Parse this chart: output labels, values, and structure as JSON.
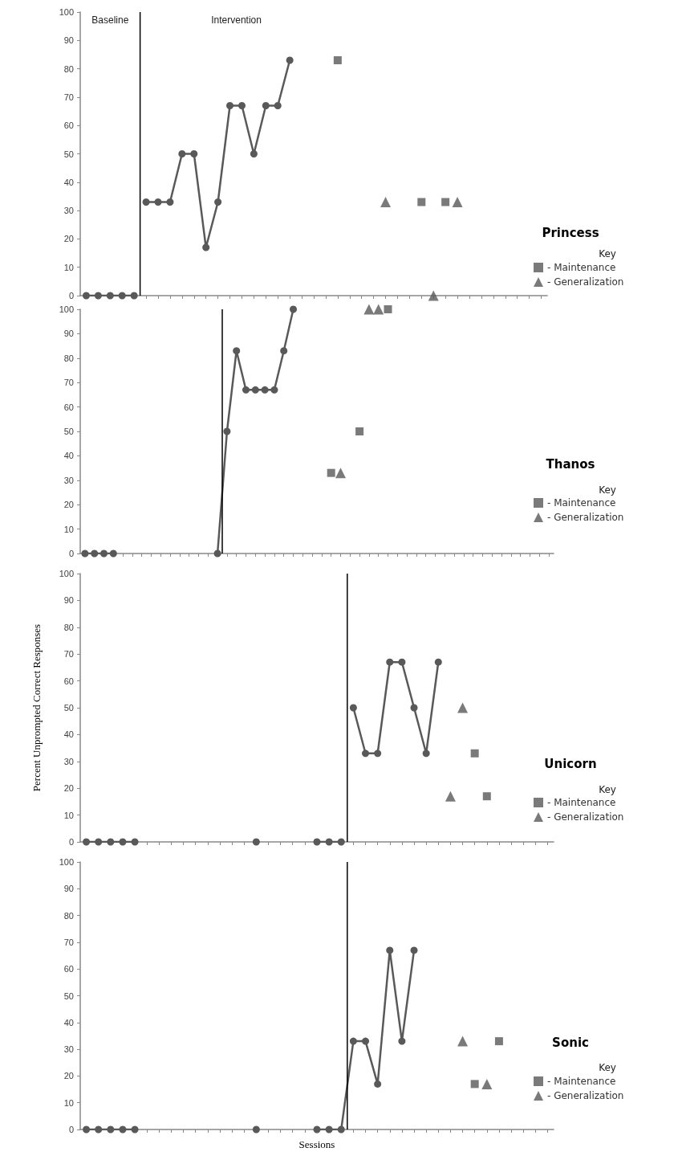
{
  "chart_data": [
    {
      "type": "line",
      "title": "Princess",
      "legend_title": "Key",
      "legend": "right",
      "tick_labels": "y",
      "grid": false,
      "marker": "circle",
      "line_style": "solid",
      "annotations": [
        "Baseline",
        "Intervention"
      ],
      "categories": [
        null,
        null,
        null,
        null,
        null,
        null,
        null,
        null,
        null,
        null,
        null,
        null,
        null,
        null,
        null,
        null,
        null,
        null,
        null,
        null,
        null,
        null,
        null,
        null,
        null,
        null,
        null,
        null,
        null,
        null,
        null,
        null,
        null,
        null,
        null,
        null,
        null,
        null,
        null
      ],
      "ylim": [
        0,
        100
      ],
      "yticks": [
        0,
        10,
        20,
        30,
        40,
        50,
        60,
        70,
        80,
        90,
        100
      ],
      "series": [
        {
          "color": "#595959",
          "values": [
            0,
            0,
            0,
            0,
            0,
            null,
            null,
            null,
            null,
            null,
            null,
            null,
            null,
            null,
            null,
            null,
            null,
            null,
            null,
            null,
            null,
            null,
            null,
            null,
            null,
            null,
            null,
            null,
            null,
            null,
            null,
            null,
            null,
            null,
            null,
            null,
            null,
            null,
            null
          ]
        },
        {
          "color": "#595959",
          "values": [
            null,
            null,
            null,
            null,
            null,
            33,
            33,
            33,
            50,
            50,
            17,
            33,
            67,
            67,
            50,
            67,
            67,
            83,
            null,
            null,
            null,
            null,
            null,
            null,
            null,
            null,
            null,
            null,
            null,
            null,
            null,
            null,
            null,
            null,
            null,
            null,
            null,
            null,
            null
          ]
        },
        {
          "type": "scatter",
          "name": "- Maintenance",
          "marker": "square",
          "color": "#595959",
          "values": [
            null,
            null,
            null,
            null,
            null,
            null,
            null,
            null,
            null,
            null,
            null,
            null,
            null,
            null,
            null,
            null,
            null,
            null,
            null,
            null,
            null,
            83,
            null,
            null,
            null,
            null,
            null,
            null,
            33,
            null,
            33,
            null,
            null,
            null,
            null,
            null,
            null,
            null,
            null
          ]
        },
        {
          "type": "scatter",
          "name": "- Generalization",
          "marker": "triangle",
          "color": "#595959",
          "values": [
            null,
            null,
            null,
            null,
            null,
            null,
            null,
            null,
            null,
            null,
            null,
            null,
            null,
            null,
            null,
            null,
            null,
            null,
            null,
            null,
            null,
            null,
            null,
            null,
            null,
            33,
            null,
            null,
            null,
            0,
            null,
            33,
            null,
            null,
            null,
            null,
            null,
            null,
            null
          ]
        }
      ]
    },
    {
      "type": "line",
      "title": "Thanos",
      "legend_title": "Key",
      "legend": "right",
      "tick_labels": "y",
      "grid": false,
      "marker": "circle",
      "line_style": "solid",
      "categories": [
        null,
        null,
        null,
        null,
        null,
        null,
        null,
        null,
        null,
        null,
        null,
        null,
        null,
        null,
        null,
        null,
        null,
        null,
        null,
        null,
        null,
        null,
        null,
        null,
        null,
        null,
        null,
        null,
        null,
        null,
        null,
        null,
        null,
        null,
        null,
        null,
        null,
        null,
        null,
        null,
        null,
        null,
        null,
        null,
        null,
        null,
        null,
        null,
        null,
        null
      ],
      "ylim": [
        0,
        100
      ],
      "yticks": [
        0,
        10,
        20,
        30,
        40,
        50,
        60,
        70,
        80,
        90,
        100
      ],
      "series": [
        {
          "color": "#595959",
          "values": [
            0,
            0,
            0,
            0,
            null,
            null,
            null,
            null,
            null,
            null,
            null,
            null,
            null,
            null,
            0,
            50,
            83,
            67,
            67,
            67,
            67,
            83,
            100,
            null,
            null,
            null,
            null,
            null,
            null,
            null,
            null,
            null,
            null,
            null,
            null,
            null,
            null,
            null,
            null,
            null,
            null,
            null,
            null,
            null,
            null,
            null,
            null,
            null,
            null,
            null
          ]
        },
        {
          "type": "scatter",
          "name": "- Maintenance",
          "marker": "square",
          "color": "#595959",
          "values": [
            null,
            null,
            null,
            null,
            null,
            null,
            null,
            null,
            null,
            null,
            null,
            null,
            null,
            null,
            null,
            null,
            null,
            null,
            null,
            null,
            null,
            null,
            null,
            null,
            null,
            null,
            33,
            null,
            null,
            50,
            null,
            null,
            100,
            null,
            null,
            null,
            null,
            null,
            null,
            null,
            null,
            null,
            null,
            null,
            null,
            null,
            null,
            null,
            null,
            null
          ]
        },
        {
          "type": "scatter",
          "name": "- Generalization",
          "marker": "triangle",
          "color": "#595959",
          "values": [
            null,
            null,
            null,
            null,
            null,
            null,
            null,
            null,
            null,
            null,
            null,
            null,
            null,
            null,
            null,
            null,
            null,
            null,
            null,
            null,
            null,
            null,
            null,
            null,
            null,
            null,
            null,
            33,
            null,
            null,
            100,
            100,
            null,
            null,
            null,
            null,
            null,
            null,
            null,
            null,
            null,
            null,
            null,
            null,
            null,
            null,
            null,
            null,
            null,
            null
          ]
        }
      ]
    },
    {
      "type": "line",
      "title": "Unicorn",
      "legend_title": "Key",
      "legend": "right",
      "tick_labels": "y",
      "grid": false,
      "marker": "circle",
      "line_style": "solid",
      "ylabel": "Percent Unprompted Correct Responses",
      "categories": [
        null,
        null,
        null,
        null,
        null,
        null,
        null,
        null,
        null,
        null,
        null,
        null,
        null,
        null,
        null,
        null,
        null,
        null,
        null,
        null,
        null,
        null,
        null,
        null,
        null,
        null,
        null,
        null,
        null,
        null,
        null,
        null,
        null,
        null,
        null,
        null,
        null,
        null,
        null
      ],
      "ylim": [
        0,
        100
      ],
      "yticks": [
        0,
        10,
        20,
        30,
        40,
        50,
        60,
        70,
        80,
        90,
        100
      ],
      "series": [
        {
          "color": "#595959",
          "values": [
            0,
            0,
            0,
            0,
            0,
            null,
            null,
            null,
            null,
            null,
            null,
            null,
            null,
            null,
            0,
            null,
            null,
            null,
            null,
            0,
            0,
            0,
            null,
            null,
            null,
            null,
            null,
            null,
            null,
            null,
            null,
            null,
            null,
            null,
            null,
            null,
            null,
            null,
            null
          ]
        },
        {
          "color": "#595959",
          "values": [
            null,
            null,
            null,
            null,
            null,
            null,
            null,
            null,
            null,
            null,
            null,
            null,
            null,
            null,
            null,
            null,
            null,
            null,
            null,
            null,
            null,
            null,
            50,
            33,
            33,
            67,
            67,
            50,
            33,
            67,
            null,
            null,
            null,
            null,
            null,
            null,
            null,
            null,
            null
          ]
        },
        {
          "type": "scatter",
          "name": "- Maintenance",
          "marker": "square",
          "color": "#595959",
          "values": [
            null,
            null,
            null,
            null,
            null,
            null,
            null,
            null,
            null,
            null,
            null,
            null,
            null,
            null,
            null,
            null,
            null,
            null,
            null,
            null,
            null,
            null,
            null,
            null,
            null,
            null,
            null,
            null,
            null,
            null,
            null,
            null,
            33,
            17,
            null,
            null,
            null,
            null,
            null
          ]
        },
        {
          "type": "scatter",
          "name": "- Generalization",
          "marker": "triangle",
          "color": "#595959",
          "values": [
            null,
            null,
            null,
            null,
            null,
            null,
            null,
            null,
            null,
            null,
            null,
            null,
            null,
            null,
            null,
            null,
            null,
            null,
            null,
            null,
            null,
            null,
            null,
            null,
            null,
            null,
            null,
            null,
            null,
            null,
            17,
            50,
            null,
            null,
            null,
            null,
            null,
            null,
            null
          ]
        }
      ]
    },
    {
      "type": "line",
      "title": "Sonic",
      "legend_title": "Key",
      "legend": "right",
      "tick_labels": "y",
      "grid": false,
      "marker": "circle",
      "line_style": "solid",
      "xlabel": "Sessions",
      "categories": [
        null,
        null,
        null,
        null,
        null,
        null,
        null,
        null,
        null,
        null,
        null,
        null,
        null,
        null,
        null,
        null,
        null,
        null,
        null,
        null,
        null,
        null,
        null,
        null,
        null,
        null,
        null,
        null,
        null,
        null,
        null,
        null,
        null,
        null,
        null,
        null,
        null,
        null,
        null
      ],
      "ylim": [
        0,
        100
      ],
      "yticks": [
        0,
        10,
        20,
        30,
        40,
        50,
        60,
        70,
        80,
        90,
        100
      ],
      "series": [
        {
          "color": "#595959",
          "values": [
            0,
            0,
            0,
            0,
            0,
            null,
            null,
            null,
            null,
            null,
            null,
            null,
            null,
            null,
            0,
            null,
            null,
            null,
            null,
            0,
            0,
            0,
            33,
            33,
            17,
            67,
            33,
            67,
            null,
            null,
            null,
            null,
            null,
            null,
            null,
            null,
            null,
            null,
            null
          ]
        },
        {
          "type": "scatter",
          "name": "- Maintenance",
          "marker": "square",
          "color": "#595959",
          "values": [
            null,
            null,
            null,
            null,
            null,
            null,
            null,
            null,
            null,
            null,
            null,
            null,
            null,
            null,
            null,
            null,
            null,
            null,
            null,
            null,
            null,
            null,
            null,
            null,
            null,
            null,
            null,
            null,
            null,
            null,
            null,
            null,
            17,
            null,
            33,
            null,
            null,
            null,
            null
          ]
        },
        {
          "type": "scatter",
          "name": "- Generalization",
          "marker": "triangle",
          "color": "#595959",
          "values": [
            null,
            null,
            null,
            null,
            null,
            null,
            null,
            null,
            null,
            null,
            null,
            null,
            null,
            null,
            null,
            null,
            null,
            null,
            null,
            null,
            null,
            null,
            null,
            null,
            null,
            null,
            null,
            null,
            null,
            null,
            null,
            33,
            null,
            17,
            null,
            null,
            null,
            null,
            null
          ]
        }
      ]
    }
  ]
}
